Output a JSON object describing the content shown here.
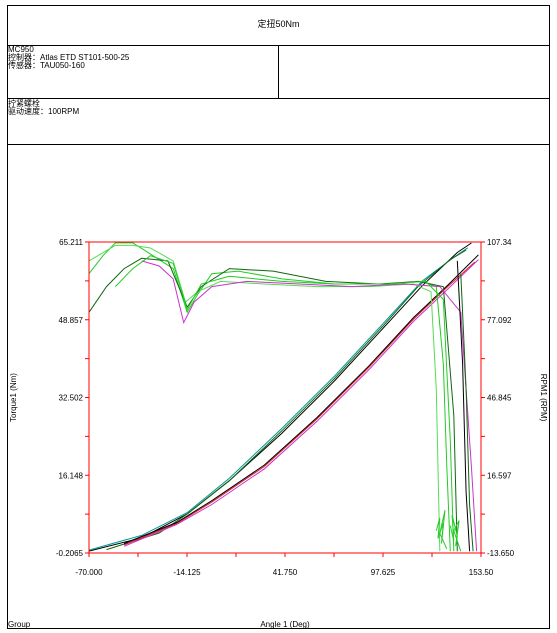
{
  "report": {
    "title": "定扭50Nm",
    "model": "MC950",
    "controller": "控制器：Atlas ETD ST101-500-25",
    "sensor": "传感器：TAU050-160",
    "operation": "拧紧螺栓",
    "drive_speed": "驱动速度：100RPM",
    "footer_group": "Group"
  },
  "chart_data": {
    "type": "line",
    "xlabel": "Angle 1 (Deg)",
    "ylabel": "Torque1 (Nm)",
    "y2label": "RPM1 (RPM)",
    "xlim": [
      -70.0,
      153.5
    ],
    "ylim": [
      -0.2065,
      65.211
    ],
    "y2lim": [
      -13.65,
      107.34
    ],
    "xticks": [
      "-70.000",
      "-14.125",
      "41.750",
      "97.625",
      "153.50"
    ],
    "yticks": [
      "-0.2065",
      "16.148",
      "32.502",
      "48.857",
      "65.211"
    ],
    "y2ticks": [
      "-13.650",
      "16.597",
      "46.845",
      "77.092",
      "107.34"
    ],
    "colors": {
      "axes": "#ff0000",
      "green": "#22cc22",
      "lightgreen": "#55dd55",
      "darkgreen": "#116611",
      "magenta": "#cc33cc",
      "black": "#000000",
      "red": "#dd2222",
      "teal": "#009999"
    },
    "torque_series": [
      {
        "color": "black",
        "x": [
          -70,
          -40,
          -14,
          10,
          40,
          70,
          100,
          120,
          140,
          148
        ],
        "y": [
          0.2,
          3,
          8,
          15,
          25,
          36,
          48,
          56,
          63,
          65
        ]
      },
      {
        "color": "teal",
        "x": [
          -70,
          -40,
          -14,
          10,
          40,
          70,
          100,
          120,
          138,
          146
        ],
        "y": [
          0.4,
          3.5,
          8.3,
          15.5,
          26,
          37,
          49,
          57,
          62,
          64
        ]
      },
      {
        "color": "darkgreen",
        "x": [
          -60,
          -30,
          -14,
          10,
          40,
          70,
          100,
          118,
          136,
          145
        ],
        "y": [
          0.5,
          4,
          8,
          15,
          25.5,
          36.5,
          48.5,
          56,
          61.5,
          63.5
        ]
      },
      {
        "color": "red",
        "x": [
          -50,
          -20,
          0,
          30,
          60,
          90,
          115,
          135,
          150
        ],
        "y": [
          1.5,
          6,
          10.5,
          18,
          28,
          39,
          49,
          56,
          61
        ]
      },
      {
        "color": "magenta",
        "x": [
          -50,
          -20,
          0,
          30,
          60,
          90,
          115,
          135,
          152
        ],
        "y": [
          1.2,
          5.8,
          10,
          17.5,
          27.5,
          38.5,
          48.5,
          55.5,
          61.5
        ]
      },
      {
        "color": "black",
        "x": [
          -50,
          -20,
          0,
          30,
          60,
          90,
          115,
          135,
          152
        ],
        "y": [
          1.8,
          6.2,
          10.8,
          18.3,
          28.3,
          39.3,
          49.3,
          56.3,
          62.5
        ]
      }
    ],
    "rpm_series": [
      {
        "color": "green",
        "x": [
          -70,
          -62,
          -55,
          -45,
          -38,
          -22,
          -14,
          -8,
          0,
          15,
          40,
          70,
          100,
          120,
          128,
          132,
          134,
          136
        ],
        "y": [
          95,
          102,
          107,
          107,
          104,
          97,
          80,
          87,
          95,
          96,
          93,
          91,
          91,
          92,
          90,
          60,
          20,
          -13
        ]
      },
      {
        "color": "lightgreen",
        "x": [
          -70,
          -55,
          -45,
          -35,
          -22,
          -15,
          -8,
          5,
          30,
          60,
          90,
          115,
          125,
          128,
          130
        ],
        "y": [
          100,
          106,
          106,
          105,
          100,
          84,
          88,
          92,
          91,
          90,
          90,
          91,
          88,
          50,
          -13
        ]
      },
      {
        "color": "darkgreen",
        "x": [
          -70,
          -60,
          -50,
          -40,
          -25,
          -14,
          -6,
          10,
          35,
          65,
          95,
          118,
          132,
          138,
          140
        ],
        "y": [
          80,
          90,
          97,
          101,
          100,
          82,
          90,
          97,
          96,
          92,
          91,
          92,
          90,
          40,
          -13
        ]
      },
      {
        "color": "magenta",
        "x": [
          -40,
          -30,
          -22,
          -16,
          -10,
          0,
          20,
          50,
          80,
          110,
          130,
          142,
          148,
          151
        ],
        "y": [
          100,
          98,
          93,
          76,
          84,
          90,
          92,
          91,
          90,
          91,
          90,
          80,
          20,
          -13
        ]
      },
      {
        "color": "green",
        "x": [
          -55,
          -45,
          -35,
          -22,
          -14,
          -6,
          10,
          40,
          70,
          100,
          122,
          132,
          136,
          138
        ],
        "y": [
          90,
          97,
          102,
          99,
          81,
          91,
          94,
          92,
          91,
          91,
          92,
          85,
          30,
          -13
        ]
      },
      {
        "color": "black",
        "x": [
          140,
          143,
          145,
          147
        ],
        "y": [
          100,
          60,
          10,
          -13
        ]
      },
      {
        "color": "darkgreen",
        "x": [
          142,
          145,
          147,
          149
        ],
        "y": [
          95,
          50,
          5,
          -13
        ]
      }
    ],
    "noise_clusters": [
      {
        "x": [
          128,
          130,
          129,
          132,
          131,
          133,
          130,
          134
        ],
        "y": [
          -5,
          0,
          -8,
          -2,
          -10,
          3,
          -6,
          -12
        ]
      },
      {
        "x": [
          136,
          138,
          137,
          140,
          139,
          141,
          138,
          142
        ],
        "y": [
          -3,
          -9,
          1,
          -7,
          -11,
          -1,
          -5,
          -13
        ]
      }
    ]
  }
}
